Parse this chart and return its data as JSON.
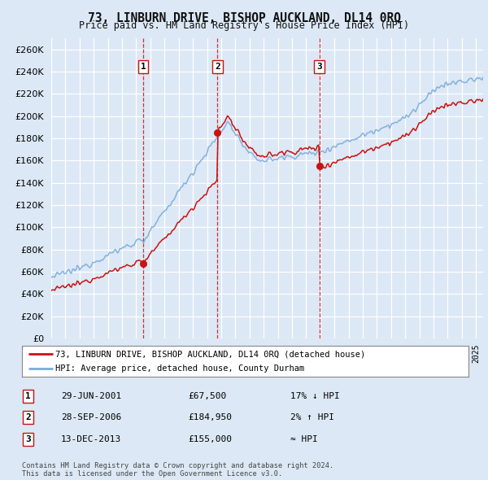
{
  "title": "73, LINBURN DRIVE, BISHOP AUCKLAND, DL14 0RQ",
  "subtitle": "Price paid vs. HM Land Registry's House Price Index (HPI)",
  "bg_color": "#dce8f5",
  "plot_bg_color": "#dce8f5",
  "grid_color": "#ffffff",
  "hpi_line_color": "#7aabdb",
  "price_line_color": "#cc1111",
  "sale_marker_color": "#cc1111",
  "dashed_line_color": "#cc1111",
  "ylim": [
    0,
    270000
  ],
  "yticks": [
    0,
    20000,
    40000,
    60000,
    80000,
    100000,
    120000,
    140000,
    160000,
    180000,
    200000,
    220000,
    240000,
    260000
  ],
  "sales": [
    {
      "date_num": 2001.49,
      "price": 67500,
      "label": "1"
    },
    {
      "date_num": 2006.74,
      "price": 184950,
      "label": "2"
    },
    {
      "date_num": 2013.95,
      "price": 155000,
      "label": "3"
    }
  ],
  "sale_dates_str": [
    "29-JUN-2001",
    "28-SEP-2006",
    "13-DEC-2013"
  ],
  "sale_prices_str": [
    "£67,500",
    "£184,950",
    "£155,000"
  ],
  "sale_hpi_str": [
    "17% ↓ HPI",
    "2% ↑ HPI",
    "≈ HPI"
  ],
  "legend_property": "73, LINBURN DRIVE, BISHOP AUCKLAND, DL14 0RQ (detached house)",
  "legend_hpi": "HPI: Average price, detached house, County Durham",
  "footer": "Contains HM Land Registry data © Crown copyright and database right 2024.\nThis data is licensed under the Open Government Licence v3.0.",
  "xmin": 1995.0,
  "xmax": 2025.5
}
